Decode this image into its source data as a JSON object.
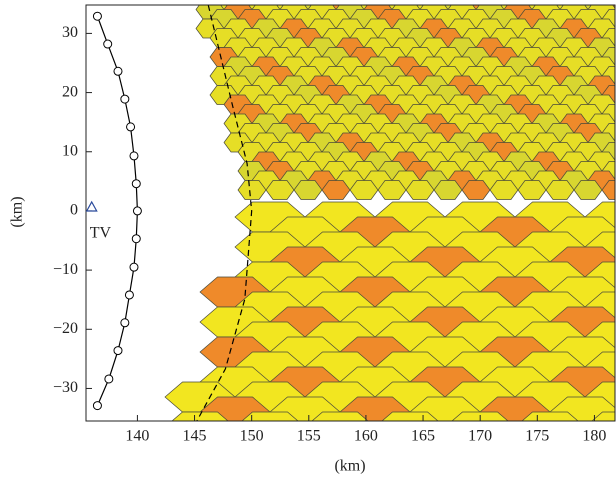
{
  "chart_data": {
    "type": "line",
    "x_label": "(km)",
    "y_label": "(km)",
    "xlim": [
      135.5,
      181.8
    ],
    "ylim": [
      -35.5,
      34.8
    ],
    "xticks": [
      140,
      145,
      150,
      155,
      160,
      165,
      170,
      175,
      180
    ],
    "yticks": [
      {
        "value": -30,
        "label": "−30"
      },
      {
        "value": -20,
        "label": "−20"
      },
      {
        "value": -10,
        "label": "−10"
      },
      0,
      10,
      20,
      30
    ],
    "series": [
      {
        "color": "#000000",
        "marker": "circle",
        "x": [
          136.5,
          137.4,
          138.3,
          138.9,
          139.4,
          139.7,
          139.9,
          140.0,
          139.9,
          139.7,
          139.3,
          138.9,
          138.3,
          137.5,
          136.5
        ],
        "values": [
          32.9,
          28.2,
          23.6,
          18.9,
          14.2,
          9.3,
          4.6,
          0,
          -4.7,
          -9.5,
          -14.2,
          -18.9,
          -23.6,
          -28.4,
          -32.9
        ]
      },
      {
        "color": "#000000",
        "dashed": true,
        "x": [
          146.2,
          148.3,
          149.6,
          150.0,
          149.4,
          147.7,
          145.2
        ],
        "values": [
          34.8,
          18.0,
          8.0,
          0,
          -14.9,
          -26.7,
          -35.5
        ]
      }
    ],
    "points": [
      {
        "label": "TV",
        "x": 136.0,
        "y": 0.5,
        "color": "#2a4a9c",
        "marker": "triangle"
      }
    ]
  }
}
